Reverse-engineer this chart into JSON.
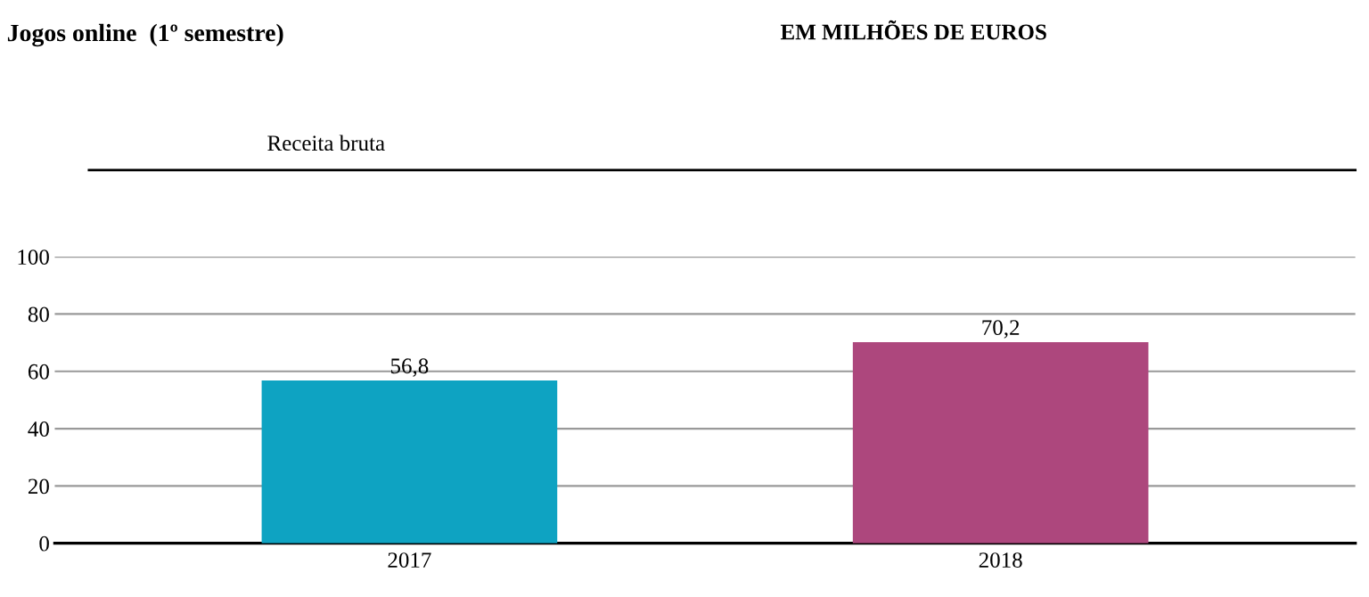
{
  "chart_data": {
    "type": "bar",
    "title": "Jogos online  (1º semestre)",
    "subtitle": "Receita bruta",
    "annotations": [
      "EM MILHÕES DE EUROS"
    ],
    "categories": [
      "2017",
      "2018"
    ],
    "values": [
      56.8,
      70.2
    ],
    "value_labels": [
      "56,8",
      "70,2"
    ],
    "colors": [
      "#0ea3c2",
      "#ad477d"
    ],
    "ylim": [
      0,
      100
    ],
    "yticks": [
      0,
      20,
      40,
      60,
      80,
      100
    ],
    "grid": "y"
  }
}
